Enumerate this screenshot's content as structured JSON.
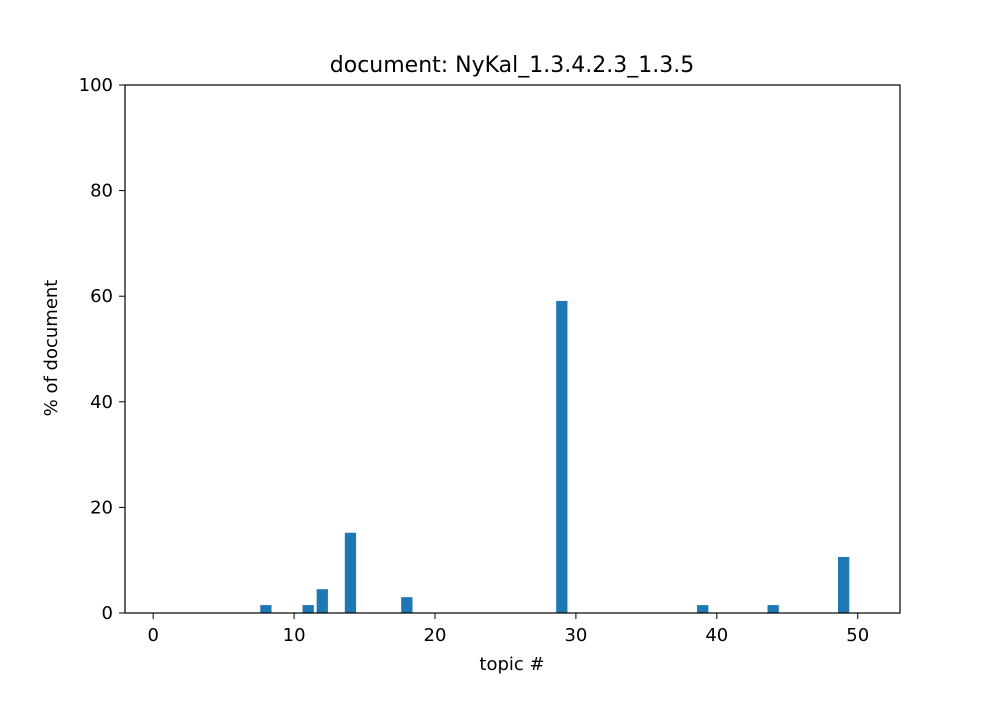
{
  "chart_data": {
    "type": "bar",
    "title": "document: NyKal_1.3.4.2.3_1.3.5",
    "xlabel": "topic #",
    "ylabel": "% of document",
    "xlim": [
      -2,
      53
    ],
    "ylim": [
      0,
      100
    ],
    "xticks": [
      0,
      10,
      20,
      30,
      40,
      50
    ],
    "yticks": [
      0,
      20,
      40,
      60,
      80,
      100
    ],
    "bar_color": "#1f77b4",
    "grid": false,
    "x": [
      8,
      11,
      12,
      14,
      18,
      29,
      39,
      44,
      49
    ],
    "values": [
      1.5,
      1.5,
      4.5,
      15.2,
      3.0,
      59.1,
      1.5,
      1.5,
      10.6
    ]
  }
}
